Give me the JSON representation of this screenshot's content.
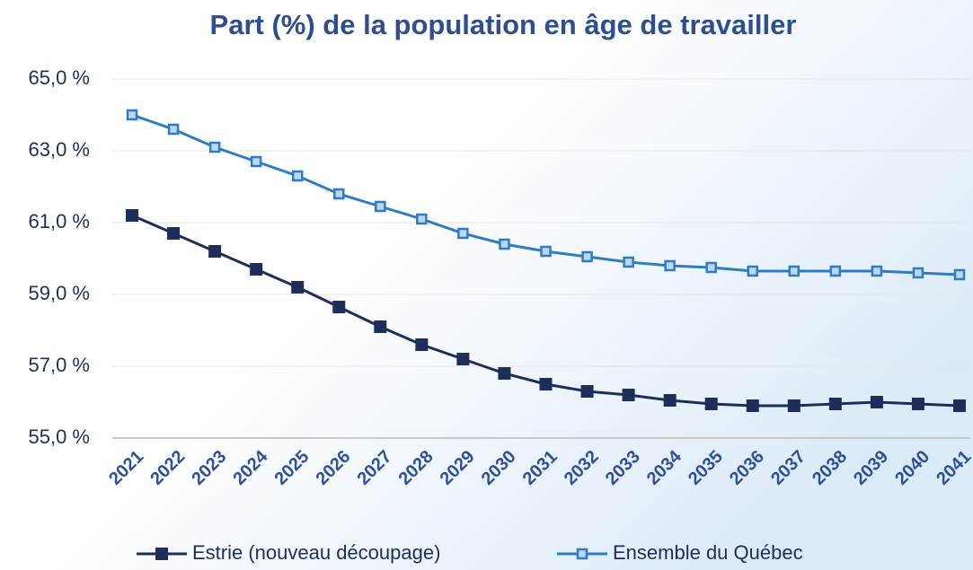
{
  "chart_data": {
    "type": "line",
    "title": "Part (%)  de la population en âge de travailler",
    "categories": [
      "2021",
      "2022",
      "2023",
      "2024",
      "2025",
      "2026",
      "2027",
      "2028",
      "2029",
      "2030",
      "2031",
      "2032",
      "2033",
      "2034",
      "2035",
      "2036",
      "2037",
      "2038",
      "2039",
      "2040",
      "2041"
    ],
    "series": [
      {
        "name": "Estrie (nouveau découpage)",
        "color": "#1f2d5a",
        "values": [
          61.2,
          60.7,
          60.2,
          59.7,
          59.2,
          58.65,
          58.1,
          57.6,
          57.2,
          56.8,
          56.5,
          56.3,
          56.2,
          56.05,
          55.95,
          55.9,
          55.9,
          55.95,
          56.0,
          55.95,
          55.9
        ]
      },
      {
        "name": "Ensemble du Québec",
        "color": "#2e7dc2",
        "values": [
          64.0,
          63.6,
          63.1,
          62.7,
          62.3,
          61.8,
          61.45,
          61.1,
          60.7,
          60.4,
          60.2,
          60.05,
          59.9,
          59.8,
          59.75,
          59.65,
          59.65,
          59.65,
          59.65,
          59.6,
          59.55
        ]
      }
    ],
    "ylim": [
      55,
      65
    ],
    "yticks": [
      {
        "value": 55,
        "label": "55,0 %"
      },
      {
        "value": 57,
        "label": "57,0 %"
      },
      {
        "value": 59,
        "label": "59,0 %"
      },
      {
        "value": 61,
        "label": "61,0 %"
      },
      {
        "value": 63,
        "label": "63,0 %"
      },
      {
        "value": 65,
        "label": "65,0 %"
      }
    ],
    "grid": true,
    "legend": "bottom"
  }
}
